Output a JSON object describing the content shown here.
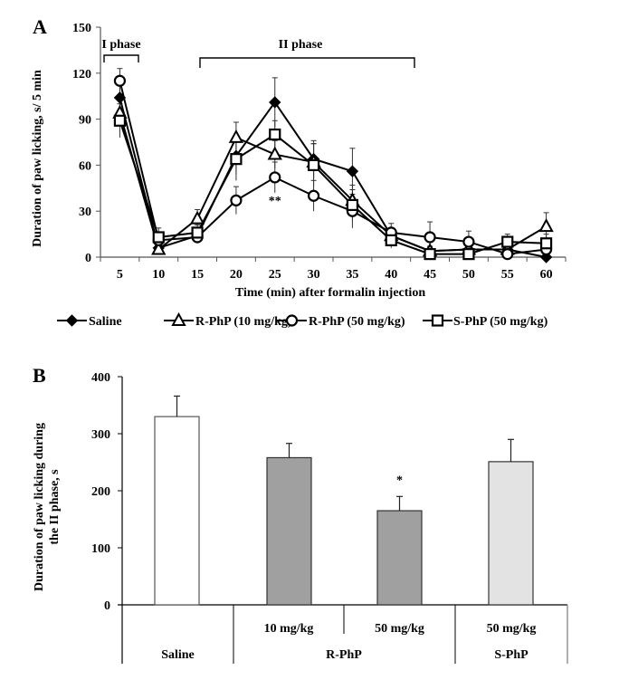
{
  "chart_data": [
    {
      "panel": "A",
      "type": "line",
      "title": "",
      "xlabel": "Time (min) after formalin injection",
      "ylabel": "Duration of paw licking, s/ 5 min",
      "ylim": [
        0,
        150
      ],
      "yticks": [
        "0",
        "30",
        "60",
        "90",
        "120",
        "150"
      ],
      "yticks_values": [
        0,
        30,
        60,
        90,
        120,
        150
      ],
      "categories": [
        "5",
        "10",
        "15",
        "20",
        "25",
        "30",
        "35",
        "40",
        "45",
        "50",
        "55",
        "60"
      ],
      "grid": false,
      "legend_position": "bottom",
      "annotations": {
        "phase1": {
          "label": "I phase",
          "from": "5",
          "to": "10"
        },
        "phase2": {
          "label": "II phase",
          "from": "15",
          "to": "40"
        },
        "significance": {
          "label": "**",
          "at": "25",
          "series": "R-PhP (50 mg/kg)"
        }
      },
      "series": [
        {
          "name": "Saline",
          "marker": "diamond-filled",
          "values": [
            104,
            6,
            14,
            66,
            101,
            64,
            56,
            14,
            4,
            5,
            5,
            0
          ],
          "errors": [
            8,
            3,
            4,
            12,
            16,
            12,
            15,
            5,
            3,
            3,
            3,
            3
          ]
        },
        {
          "name": "R-PhP (10 mg/kg)",
          "marker": "triangle-open",
          "values": [
            94,
            5,
            25,
            78,
            67,
            62,
            37,
            14,
            4,
            5,
            5,
            20
          ],
          "errors": [
            8,
            3,
            6,
            10,
            9,
            12,
            10,
            5,
            3,
            3,
            3,
            9
          ]
        },
        {
          "name": "R-PhP (50 mg/kg)",
          "marker": "circle-open",
          "values": [
            115,
            11,
            13,
            37,
            52,
            40,
            30,
            16,
            13,
            10,
            2,
            5
          ],
          "errors": [
            8,
            4,
            4,
            9,
            10,
            10,
            11,
            6,
            10,
            7,
            3,
            4
          ]
        },
        {
          "name": "S-PhP (50 mg/kg)",
          "marker": "square-open",
          "values": [
            89,
            13,
            16,
            64,
            80,
            60,
            34,
            11,
            2,
            2,
            10,
            9
          ],
          "errors": [
            11,
            6,
            5,
            14,
            9,
            14,
            10,
            5,
            2,
            2,
            5,
            6
          ]
        }
      ]
    },
    {
      "panel": "B",
      "type": "bar",
      "title": "",
      "xlabel": "",
      "ylabel": "Duration of paw licking during the II phase, s",
      "ylabel_lines": [
        "Duration of paw licking during",
        "the II phase, s"
      ],
      "ylim": [
        0,
        400
      ],
      "yticks": [
        "0",
        "100",
        "200",
        "300",
        "400"
      ],
      "yticks_values": [
        0,
        100,
        200,
        300,
        400
      ],
      "grid": false,
      "categories": [
        "Saline",
        "R-PhP 10 mg/kg",
        "R-PhP 50 mg/kg",
        "S-PhP 50 mg/kg"
      ],
      "dose_labels": [
        "",
        "10 mg/kg",
        "50 mg/kg",
        "50 mg/kg"
      ],
      "group_labels": [
        "Saline",
        "R-PhP",
        "S-PhP"
      ],
      "values": [
        330,
        258,
        165,
        251
      ],
      "errors": [
        36,
        25,
        25,
        39
      ],
      "colors": [
        "#ffffff",
        "#a0a0a0",
        "#a0a0a0",
        "#e3e3e3"
      ],
      "annotations": [
        {
          "label": "*",
          "at": "R-PhP 50 mg/kg"
        }
      ]
    }
  ],
  "panel_labels": {
    "a": "A",
    "b": "B"
  }
}
